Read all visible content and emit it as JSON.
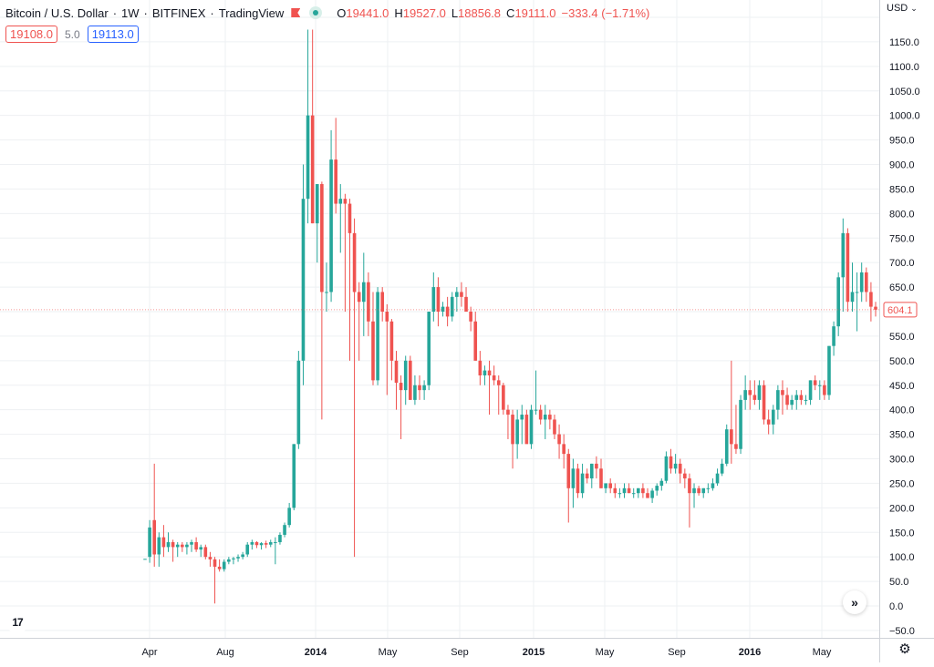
{
  "legend": {
    "symbol": "Bitcoin / U.S. Dollar",
    "interval": "1W",
    "exchange": "BITFINEX",
    "source": "TradingView",
    "open_label": "O",
    "open": "19441.0",
    "high_label": "H",
    "high": "19527.0",
    "low_label": "L",
    "low": "18856.8",
    "close_label": "C",
    "close": "19111.0",
    "change": "−333.4 (−1.71%)"
  },
  "quote": {
    "bid": "19108.0",
    "spread": "5.0",
    "ask": "19113.0"
  },
  "price_axis": {
    "currency": "USD",
    "last_price": "604.1",
    "labels": [
      "1200.0",
      "1150.0",
      "1100.0",
      "1050.0",
      "1000.0",
      "950.0",
      "900.0",
      "850.0",
      "800.0",
      "750.0",
      "700.0",
      "650.0",
      "600.0",
      "550.0",
      "500.0",
      "450.0",
      "400.0",
      "350.0",
      "300.0",
      "250.0",
      "200.0",
      "150.0",
      "100.0",
      "50.0",
      "0.0",
      "−50.0"
    ]
  },
  "time_axis": {
    "labels": [
      "Apr",
      "Aug",
      "2014",
      "May",
      "Sep",
      "2015",
      "May",
      "Sep",
      "2016",
      "May"
    ],
    "bold": [
      false,
      false,
      true,
      false,
      false,
      true,
      false,
      false,
      true,
      false
    ]
  },
  "colors": {
    "up": "#26a69a",
    "down": "#ef5350",
    "grid": "#eef0f3"
  },
  "icons": {
    "logo": "tradingview-logo-icon",
    "scroll": "double-chevron-right-icon",
    "settings": "gear-icon",
    "flag": "flag-icon"
  },
  "logo_text": "17",
  "chart_data": {
    "type": "candlestick",
    "interval": "1W",
    "x": [
      "Apr 2013",
      "Aug 2013",
      "2014",
      "May 2014",
      "Sep 2014",
      "2015",
      "May 2015",
      "Sep 2015",
      "2016",
      "May 2016"
    ],
    "ylim": [
      -50,
      1200
    ],
    "series": [
      {
        "values": [
          [
            95,
            96,
            95,
            96
          ],
          [
            100,
            175,
            88,
            160
          ],
          [
            175,
            290,
            80,
            105
          ],
          [
            105,
            150,
            80,
            140
          ],
          [
            140,
            165,
            100,
            120
          ],
          [
            120,
            150,
            110,
            130
          ],
          [
            130,
            135,
            90,
            120
          ],
          [
            120,
            130,
            100,
            125
          ],
          [
            125,
            130,
            110,
            120
          ],
          [
            120,
            130,
            105,
            125
          ],
          [
            125,
            135,
            110,
            130
          ],
          [
            130,
            140,
            110,
            115
          ],
          [
            115,
            125,
            100,
            120
          ],
          [
            120,
            125,
            95,
            100
          ],
          [
            100,
            110,
            80,
            95
          ],
          [
            95,
            100,
            5,
            80
          ],
          [
            80,
            95,
            70,
            75
          ],
          [
            75,
            95,
            70,
            90
          ],
          [
            90,
            100,
            85,
            95
          ],
          [
            95,
            100,
            85,
            97
          ],
          [
            97,
            105,
            90,
            100
          ],
          [
            100,
            110,
            95,
            105
          ],
          [
            105,
            130,
            100,
            125
          ],
          [
            125,
            135,
            115,
            130
          ],
          [
            130,
            132,
            118,
            124
          ],
          [
            124,
            130,
            115,
            128
          ],
          [
            128,
            133,
            118,
            125
          ],
          [
            125,
            135,
            120,
            130
          ],
          [
            130,
            140,
            85,
            130
          ],
          [
            130,
            150,
            125,
            145
          ],
          [
            145,
            170,
            140,
            165
          ],
          [
            165,
            210,
            160,
            200
          ],
          [
            200,
            330,
            195,
            330
          ],
          [
            330,
            520,
            320,
            500
          ],
          [
            500,
            900,
            450,
            830
          ],
          [
            830,
            1175,
            780,
            1000
          ],
          [
            1000,
            1175,
            780,
            780
          ],
          [
            780,
            860,
            700,
            860
          ],
          [
            860,
            865,
            380,
            640
          ],
          [
            640,
            700,
            600,
            640
          ],
          [
            640,
            970,
            620,
            910
          ],
          [
            910,
            995,
            800,
            820
          ],
          [
            820,
            860,
            720,
            830
          ],
          [
            830,
            840,
            600,
            820
          ],
          [
            820,
            830,
            500,
            760
          ],
          [
            760,
            790,
            100,
            640
          ],
          [
            640,
            660,
            500,
            620
          ],
          [
            620,
            720,
            550,
            660
          ],
          [
            660,
            680,
            550,
            580
          ],
          [
            580,
            640,
            450,
            460
          ],
          [
            460,
            650,
            450,
            640
          ],
          [
            640,
            650,
            580,
            600
          ],
          [
            600,
            615,
            430,
            580
          ],
          [
            580,
            585,
            460,
            500
          ],
          [
            500,
            520,
            400,
            455
          ],
          [
            455,
            470,
            340,
            440
          ],
          [
            440,
            510,
            410,
            500
          ],
          [
            500,
            510,
            420,
            420
          ],
          [
            420,
            470,
            410,
            450
          ],
          [
            450,
            470,
            420,
            440
          ],
          [
            440,
            460,
            420,
            450
          ],
          [
            450,
            580,
            440,
            600
          ],
          [
            600,
            680,
            580,
            650
          ],
          [
            650,
            670,
            570,
            600
          ],
          [
            600,
            620,
            590,
            610
          ],
          [
            610,
            630,
            570,
            590
          ],
          [
            590,
            640,
            580,
            630
          ],
          [
            630,
            650,
            600,
            640
          ],
          [
            640,
            660,
            610,
            630
          ],
          [
            630,
            650,
            600,
            600
          ],
          [
            600,
            610,
            560,
            580
          ],
          [
            580,
            600,
            500,
            500
          ],
          [
            500,
            520,
            450,
            470
          ],
          [
            470,
            490,
            450,
            480
          ],
          [
            480,
            500,
            390,
            470
          ],
          [
            470,
            490,
            450,
            460
          ],
          [
            460,
            470,
            390,
            450
          ],
          [
            450,
            455,
            390,
            400
          ],
          [
            400,
            410,
            340,
            390
          ],
          [
            390,
            400,
            280,
            330
          ],
          [
            330,
            400,
            300,
            380
          ],
          [
            380,
            410,
            330,
            390
          ],
          [
            390,
            400,
            340,
            330
          ],
          [
            330,
            410,
            320,
            400
          ],
          [
            400,
            480,
            390,
            400
          ],
          [
            400,
            410,
            370,
            380
          ],
          [
            380,
            410,
            340,
            390
          ],
          [
            390,
            400,
            360,
            380
          ],
          [
            380,
            390,
            340,
            350
          ],
          [
            350,
            370,
            300,
            330
          ],
          [
            330,
            350,
            280,
            310
          ],
          [
            310,
            320,
            170,
            240
          ],
          [
            240,
            300,
            200,
            280
          ],
          [
            280,
            290,
            220,
            230
          ],
          [
            230,
            290,
            220,
            270
          ],
          [
            270,
            280,
            250,
            260
          ],
          [
            260,
            290,
            240,
            290
          ],
          [
            290,
            305,
            260,
            280
          ],
          [
            280,
            300,
            240,
            240
          ],
          [
            240,
            250,
            230,
            250
          ],
          [
            250,
            260,
            230,
            240
          ],
          [
            240,
            250,
            220,
            230
          ],
          [
            230,
            240,
            220,
            230
          ],
          [
            230,
            250,
            220,
            240
          ],
          [
            240,
            250,
            230,
            230
          ],
          [
            230,
            240,
            220,
            230
          ],
          [
            230,
            240,
            220,
            240
          ],
          [
            240,
            250,
            220,
            230
          ],
          [
            230,
            240,
            220,
            220
          ],
          [
            220,
            240,
            210,
            235
          ],
          [
            235,
            250,
            225,
            245
          ],
          [
            245,
            260,
            235,
            255
          ],
          [
            255,
            315,
            250,
            305
          ],
          [
            305,
            320,
            270,
            280
          ],
          [
            280,
            310,
            270,
            290
          ],
          [
            290,
            300,
            250,
            270
          ],
          [
            270,
            280,
            240,
            260
          ],
          [
            260,
            270,
            160,
            230
          ],
          [
            230,
            250,
            200,
            240
          ],
          [
            240,
            245,
            225,
            230
          ],
          [
            230,
            240,
            220,
            240
          ],
          [
            240,
            250,
            230,
            240
          ],
          [
            240,
            260,
            235,
            250
          ],
          [
            250,
            280,
            245,
            270
          ],
          [
            270,
            300,
            265,
            290
          ],
          [
            290,
            370,
            285,
            360
          ],
          [
            360,
            500,
            290,
            330
          ],
          [
            330,
            410,
            310,
            320
          ],
          [
            320,
            430,
            310,
            420
          ],
          [
            420,
            470,
            400,
            440
          ],
          [
            440,
            460,
            400,
            430
          ],
          [
            430,
            460,
            410,
            420
          ],
          [
            420,
            460,
            400,
            450
          ],
          [
            450,
            460,
            370,
            380
          ],
          [
            380,
            400,
            350,
            370
          ],
          [
            370,
            410,
            350,
            400
          ],
          [
            400,
            450,
            380,
            440
          ],
          [
            440,
            460,
            390,
            430
          ],
          [
            430,
            445,
            400,
            410
          ],
          [
            410,
            430,
            400,
            420
          ],
          [
            420,
            440,
            400,
            430
          ],
          [
            430,
            440,
            410,
            420
          ],
          [
            420,
            430,
            410,
            420
          ],
          [
            420,
            460,
            410,
            460
          ],
          [
            460,
            470,
            440,
            450
          ],
          [
            450,
            460,
            420,
            450
          ],
          [
            450,
            460,
            420,
            430
          ],
          [
            430,
            530,
            420,
            530
          ],
          [
            530,
            580,
            510,
            570
          ],
          [
            570,
            680,
            550,
            670
          ],
          [
            670,
            790,
            600,
            760
          ],
          [
            760,
            770,
            600,
            620
          ],
          [
            620,
            700,
            600,
            640
          ],
          [
            640,
            680,
            560,
            640
          ],
          [
            640,
            700,
            620,
            680
          ],
          [
            680,
            690,
            620,
            640
          ],
          [
            640,
            660,
            580,
            610
          ],
          [
            610,
            620,
            590,
            604
          ]
        ]
      }
    ]
  }
}
